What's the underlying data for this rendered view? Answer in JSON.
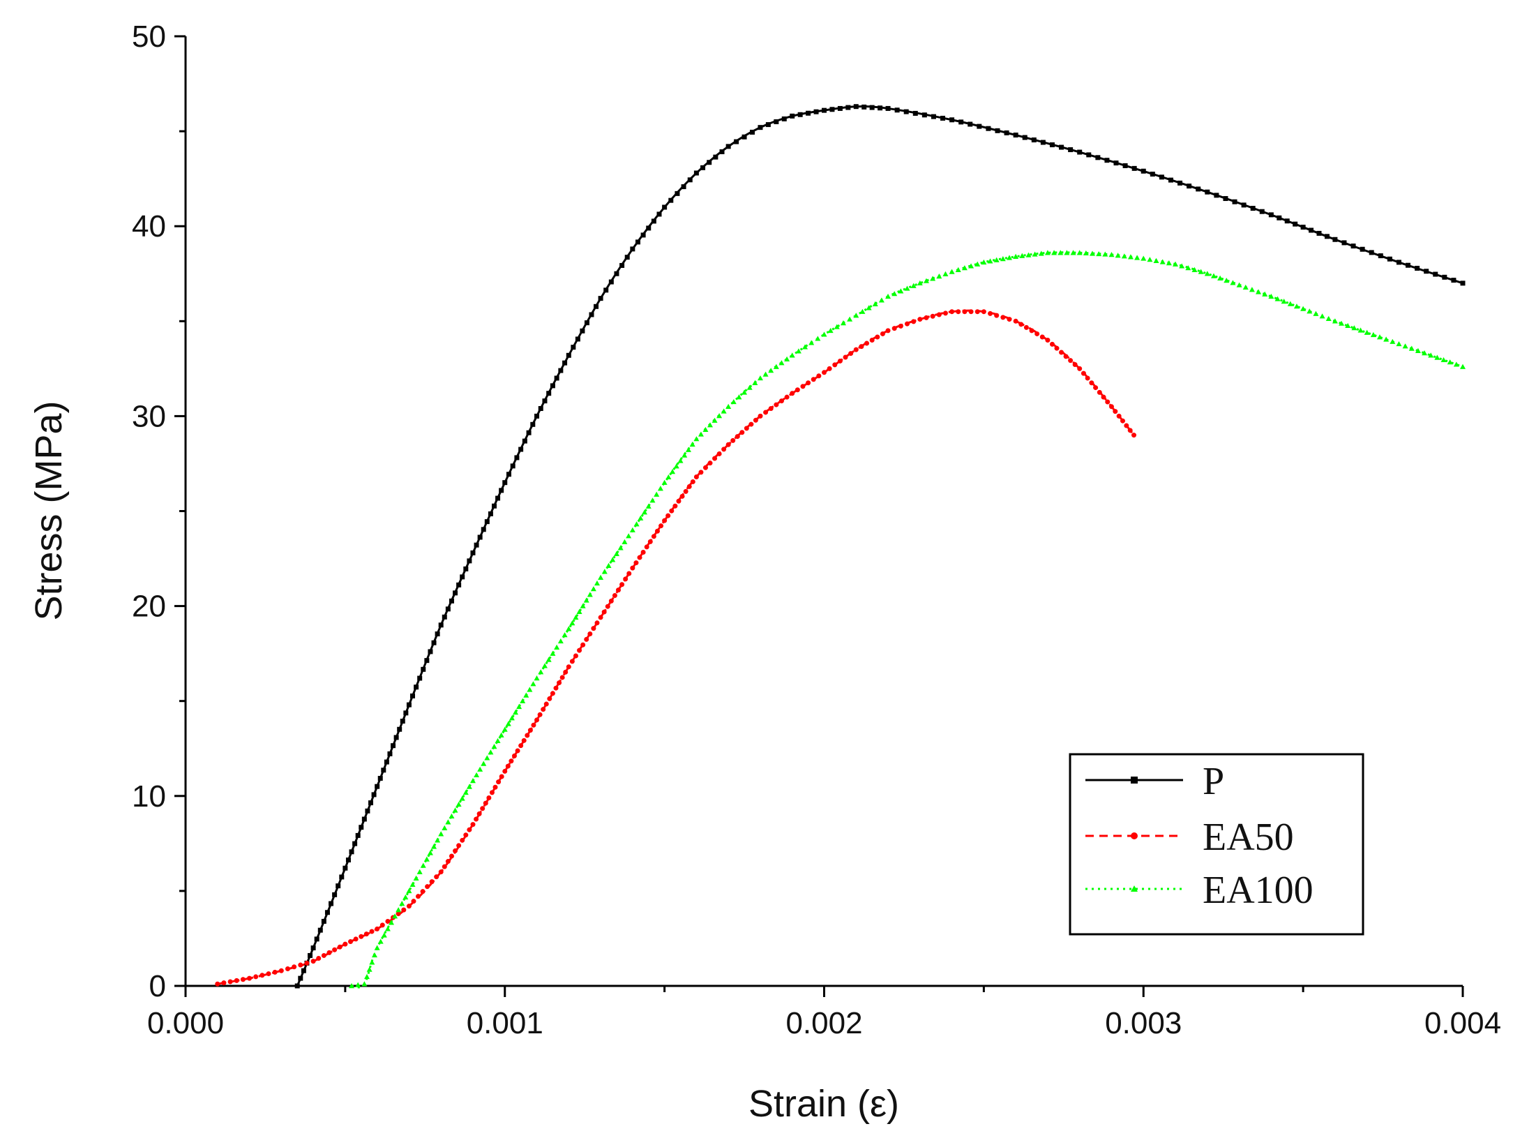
{
  "chart_data": {
    "type": "line",
    "title": "",
    "xlabel": "Strain (ε)",
    "ylabel": "Stress (MPa)",
    "xlim": [
      0.0,
      0.004
    ],
    "ylim": [
      0,
      50
    ],
    "xticks": [
      0.0,
      0.001,
      0.002,
      0.003,
      0.004
    ],
    "xtick_labels": [
      "0.000",
      "0.001",
      "0.002",
      "0.003",
      "0.004"
    ],
    "yticks": [
      0,
      10,
      20,
      30,
      40,
      50
    ],
    "ytick_labels": [
      "0",
      "10",
      "20",
      "30",
      "40",
      "50"
    ],
    "grid": false,
    "legend_position": "bottom-right",
    "series": [
      {
        "name": "P",
        "color": "#000000",
        "line_style": "solid",
        "marker": "square",
        "x": [
          0.00035,
          0.0004,
          0.0005,
          0.0006,
          0.0007,
          0.0008,
          0.0009,
          0.001,
          0.0011,
          0.0012,
          0.0013,
          0.0014,
          0.0015,
          0.0016,
          0.0017,
          0.0018,
          0.0019,
          0.002,
          0.0021,
          0.0022,
          0.0024,
          0.0026,
          0.0028,
          0.003,
          0.0032,
          0.0034,
          0.0036,
          0.0038,
          0.004
        ],
        "y": [
          0,
          2,
          6.2,
          10.5,
          14.8,
          19.0,
          22.8,
          26.5,
          30.0,
          33.2,
          36.2,
          38.8,
          41.0,
          42.8,
          44.2,
          45.2,
          45.8,
          46.1,
          46.3,
          46.2,
          45.6,
          44.8,
          43.9,
          42.9,
          41.8,
          40.6,
          39.3,
          38.1,
          37.0
        ]
      },
      {
        "name": "EA50",
        "color": "#ff0000",
        "line_style": "dashed",
        "marker": "circle",
        "x": [
          0.0001,
          0.0002,
          0.0003,
          0.0004,
          0.0005,
          0.0006,
          0.0007,
          0.0008,
          0.0009,
          0.001,
          0.0011,
          0.0012,
          0.0013,
          0.0014,
          0.0015,
          0.0016,
          0.0017,
          0.0018,
          0.0019,
          0.002,
          0.0021,
          0.0022,
          0.0023,
          0.0024,
          0.0025,
          0.0026,
          0.0027,
          0.0028,
          0.0029,
          0.00297
        ],
        "y": [
          0.1,
          0.4,
          0.8,
          1.3,
          2.2,
          3.0,
          4.2,
          6.0,
          8.5,
          11.3,
          14.0,
          16.8,
          19.4,
          22.0,
          24.5,
          26.8,
          28.5,
          30.0,
          31.2,
          32.3,
          33.5,
          34.5,
          35.1,
          35.5,
          35.5,
          35.0,
          34.0,
          32.5,
          30.5,
          29.0
        ]
      },
      {
        "name": "EA100",
        "color": "#00ff00",
        "line_style": "dotted",
        "marker": "triangle",
        "x": [
          0.00052,
          0.00056,
          0.0006,
          0.0007,
          0.0008,
          0.0009,
          0.001,
          0.0011,
          0.0012,
          0.0013,
          0.0014,
          0.0015,
          0.0016,
          0.0017,
          0.0018,
          0.0019,
          0.002,
          0.0021,
          0.0022,
          0.0023,
          0.0024,
          0.0025,
          0.0026,
          0.0027,
          0.0028,
          0.0029,
          0.003,
          0.0031,
          0.0032,
          0.0034,
          0.0036,
          0.0038,
          0.004
        ],
        "y": [
          0,
          0.1,
          2.0,
          5.0,
          8.0,
          10.8,
          13.5,
          16.2,
          18.8,
          21.5,
          24.0,
          26.5,
          28.8,
          30.5,
          32.0,
          33.2,
          34.3,
          35.3,
          36.3,
          37.0,
          37.6,
          38.1,
          38.4,
          38.6,
          38.6,
          38.5,
          38.3,
          38.0,
          37.5,
          36.3,
          35.0,
          33.8,
          32.6
        ]
      }
    ]
  }
}
